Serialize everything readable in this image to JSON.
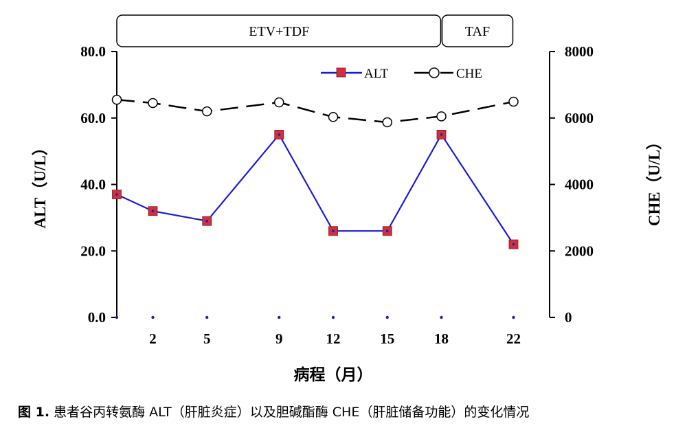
{
  "chart_data": {
    "type": "line",
    "phases": [
      {
        "label": "ETV+TDF",
        "x_start": 0,
        "x_end": 18
      },
      {
        "label": "TAF",
        "x_start": 18,
        "x_end": 22
      }
    ],
    "x": [
      0,
      2,
      5,
      9,
      12,
      15,
      18,
      22
    ],
    "x_ticks": [
      2,
      5,
      9,
      12,
      15,
      18,
      22
    ],
    "xlim": [
      0,
      24
    ],
    "xlabel": "病程（月）",
    "ylabel": "ALT（U/L）",
    "y2label": "CHE（U/L）",
    "ylim": [
      0,
      80
    ],
    "y2lim": [
      0,
      8000
    ],
    "y_ticks": [
      "0.0",
      "20.0",
      "40.0",
      "60.0",
      "80.0"
    ],
    "y2_ticks": [
      "0",
      "2000",
      "4000",
      "6000",
      "8000"
    ],
    "series": [
      {
        "name": "ALT",
        "axis": "left",
        "values": [
          37,
          32,
          29,
          55,
          26,
          26,
          55,
          22
        ],
        "color": "#1a1adb",
        "marker": "square",
        "marker_color": "#d32f3a"
      },
      {
        "name": "CHE",
        "axis": "right",
        "values": [
          6550,
          6450,
          6200,
          6470,
          6030,
          5870,
          6050,
          6490
        ],
        "color": "#000000",
        "marker": "circle",
        "dashed": true
      }
    ],
    "legend_position": "top-right",
    "grid": false
  },
  "caption": {
    "label": "图 1.",
    "text": "患者谷丙转氨酶 ALT（肝脏炎症）以及胆碱酯酶 CHE（肝脏储备功能）的变化情况"
  }
}
